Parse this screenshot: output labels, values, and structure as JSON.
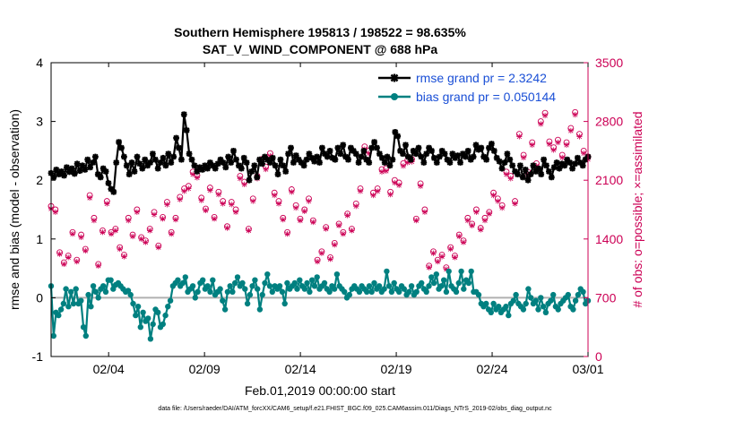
{
  "chart_data": {
    "type": "line",
    "title": "Southern Hemisphere 195813 / 198522 = 98.635%",
    "subtitle": "SAT_V_WIND_COMPONENT @ 688 hPa",
    "xlabel": "Feb.01,2019 00:00:00 start",
    "ylabel": "rmse and bias (model - observation)",
    "ylabel_right": "# of obs: o=possible; ×=assimilated",
    "footnote": "data file: /Users/raeder/DAI/ATM_forcXX/CAM6_setup/f.e21.FHIST_BGC.f09_025.CAM6assim.011/Diags_NTrS_2019-02/obs_diag_output.nc",
    "xlim": [
      1,
      29
    ],
    "ylim": [
      -1,
      4
    ],
    "ylim_right": [
      0,
      3500
    ],
    "x_ticks": [
      {
        "v": 4,
        "label": "02/04"
      },
      {
        "v": 9,
        "label": "02/09"
      },
      {
        "v": 14,
        "label": "02/14"
      },
      {
        "v": 19,
        "label": "02/19"
      },
      {
        "v": 24,
        "label": "02/24"
      },
      {
        "v": 29,
        "label": "03/01"
      }
    ],
    "y_ticks": [
      "-1",
      "0",
      "1",
      "2",
      "3",
      "4"
    ],
    "y_ticks_right": [
      "0",
      "700",
      "1400",
      "2100",
      "2800",
      "3500"
    ],
    "zero_line": 0,
    "colors": {
      "rmse": "#000000",
      "bias": "#008080",
      "obs": "#cc0055",
      "legend_text": "#1a4fd6",
      "zero": "#b0b0b0"
    },
    "series": [
      {
        "name": "rmse grand pr = 2.3242",
        "color": "#000000",
        "values": [
          2.12,
          2.05,
          2.18,
          2.1,
          2.15,
          2.08,
          2.22,
          2.14,
          2.2,
          2.11,
          2.28,
          2.16,
          2.25,
          2.18,
          2.35,
          2.22,
          2.3,
          2.4,
          2.1,
          2.05,
          2.2,
          2.15,
          1.95,
          1.85,
          1.8,
          2.3,
          2.65,
          2.55,
          2.4,
          2.25,
          2.1,
          2.3,
          2.15,
          2.4,
          2.28,
          2.2,
          2.35,
          2.25,
          2.3,
          2.45,
          2.35,
          2.2,
          2.3,
          2.38,
          2.25,
          2.45,
          2.3,
          2.4,
          2.72,
          2.55,
          2.35,
          3.12,
          2.85,
          2.45,
          2.35,
          2.25,
          2.15,
          2.22,
          2.18,
          2.25,
          2.2,
          2.3,
          2.25,
          2.2,
          2.28,
          2.35,
          2.3,
          2.22,
          2.4,
          2.3,
          2.5,
          2.35,
          2.25,
          2.2,
          2.38,
          2.3,
          2.0,
          2.15,
          2.25,
          2.05,
          2.35,
          2.28,
          2.4,
          2.35,
          2.3,
          2.38,
          2.25,
          2.1,
          2.35,
          2.25,
          2.15,
          2.45,
          2.55,
          2.3,
          2.42,
          2.35,
          2.3,
          2.25,
          2.35,
          2.45,
          2.38,
          2.32,
          2.4,
          2.3,
          2.55,
          2.45,
          2.4,
          2.5,
          2.38,
          2.35,
          2.55,
          2.45,
          2.6,
          2.4,
          2.35,
          2.55,
          2.5,
          2.45,
          2.3,
          2.4,
          2.5,
          2.35,
          2.3,
          2.55,
          2.65,
          2.55,
          2.45,
          2.38,
          2.3,
          2.4,
          2.25,
          2.35,
          2.82,
          2.75,
          2.5,
          2.45,
          2.6,
          2.4,
          2.35,
          2.5,
          2.45,
          2.55,
          2.4,
          2.3,
          2.45,
          2.55,
          2.5,
          2.38,
          2.3,
          2.4,
          2.5,
          2.45,
          2.35,
          2.3,
          2.45,
          2.38,
          2.42,
          2.3,
          2.45,
          2.4,
          2.5,
          2.35,
          2.4,
          2.6,
          2.52,
          2.55,
          2.4,
          2.35,
          2.55,
          2.62,
          2.5,
          2.38,
          2.32,
          2.2,
          2.3,
          2.45,
          2.35,
          2.25,
          2.15,
          2.1,
          2.25,
          2.05,
          2.18,
          2.0,
          2.1,
          2.25,
          2.15,
          2.2,
          2.1,
          2.35,
          2.25,
          2.15,
          2.05,
          2.22,
          2.3,
          2.2,
          2.28,
          2.25,
          2.35,
          2.3,
          2.2,
          2.28,
          2.38,
          2.3,
          2.25,
          2.35,
          2.4
        ]
      },
      {
        "name": "bias grand pr = 0.050144",
        "color": "#008080",
        "values": [
          0.2,
          -0.65,
          -0.25,
          -0.3,
          -0.2,
          -0.1,
          0.15,
          -0.15,
          0.1,
          -0.1,
          0.15,
          -0.1,
          -0.05,
          -0.5,
          -0.65,
          0.05,
          -0.15,
          0.2,
          0.1,
          0.0,
          0.15,
          0.2,
          0.1,
          0.3,
          0.3,
          0.15,
          0.22,
          0.25,
          0.2,
          0.15,
          0.1,
          0.12,
          0.05,
          -0.1,
          -0.3,
          -0.15,
          -0.5,
          -0.25,
          -0.4,
          -0.35,
          -0.7,
          -0.45,
          -0.2,
          -0.25,
          -0.5,
          -0.45,
          -0.3,
          -0.15,
          -0.05,
          0.2,
          0.25,
          0.3,
          0.2,
          0.25,
          0.35,
          0.1,
          0.15,
          0.2,
          0.0,
          0.1,
          0.25,
          0.3,
          0.15,
          0.2,
          0.1,
          0.3,
          0.05,
          0.1,
          0.15,
          -0.05,
          -0.2,
          0.1,
          0.2,
          0.1,
          0.25,
          0.35,
          0.2,
          0.25,
          0.15,
          -0.1,
          0.05,
          0.2,
          0.3,
          0.15,
          -0.2,
          0.05,
          0.25,
          0.4,
          0.2,
          0.1,
          0.2,
          0.15,
          0.2,
          0.1,
          -0.1,
          0.25,
          0.15,
          0.2,
          0.25,
          0.15,
          0.3,
          0.2,
          0.15,
          0.25,
          0.1,
          0.3,
          0.2,
          0.35,
          0.15,
          0.2,
          0.25,
          0.15,
          0.1,
          0.2,
          0.15,
          0.4,
          0.2,
          0.15,
          0.1,
          0.0,
          0.05,
          0.15,
          0.2,
          0.15,
          0.1,
          0.2,
          0.15,
          0.1,
          0.2,
          0.1,
          0.25,
          0.15,
          0.2,
          0.1,
          0.15,
          0.45,
          0.2,
          0.1,
          0.25,
          0.15,
          0.1,
          0.2,
          0.15,
          0.05,
          0.1,
          0.2,
          0.05,
          0.1,
          0.2,
          0.25,
          0.15,
          0.1,
          0.2,
          0.35,
          0.25,
          0.4,
          0.15,
          0.2,
          0.3,
          0.1,
          0.45,
          0.2,
          0.15,
          0.1,
          0.25,
          0.45,
          0.15,
          0.3,
          0.25,
          0.45,
          0.1,
          0.1,
          0.05,
          -0.1,
          -0.15,
          -0.1,
          -0.2,
          -0.25,
          -0.1,
          -0.2,
          -0.15,
          -0.25,
          -0.2,
          -0.15,
          -0.3,
          -0.1,
          -0.05,
          0.05,
          -0.1,
          -0.15,
          -0.2,
          -0.1,
          0.15,
          0.0,
          -0.1,
          -0.05,
          -0.2,
          0.0,
          -0.15,
          -0.25,
          -0.1,
          -0.05,
          0.05,
          -0.15,
          -0.2,
          -0.1,
          -0.05,
          0.0,
          0.05,
          -0.15,
          -0.2,
          -0.05,
          0.05,
          0.15,
          0.1,
          -0.1,
          -0.05
        ]
      }
    ],
    "obs_possible": [
      1790,
      1750,
      1240,
      1120,
      1200,
      1480,
      1150,
      1450,
      1280,
      1920,
      1650,
      1100,
      1500,
      1850,
      1480,
      1520,
      1300,
      1210,
      1650,
      1450,
      1750,
      1420,
      1380,
      1520,
      1720,
      1320,
      1660,
      1840,
      1480,
      1650,
      1900,
      2000,
      2030,
      2200,
      2160,
      1890,
      1760,
      2010,
      1660,
      1960,
      1850,
      1550,
      1840,
      1750,
      2150,
      2080,
      1520,
      1880,
      2150,
      2350,
      2260,
      2420,
      1950,
      1850,
      1650,
      1480,
      1990,
      1800,
      1640,
      1750,
      1880,
      1620,
      1150,
      1250,
      1540,
      1180,
      1350,
      1580,
      1480,
      1700,
      1520,
      1820,
      2000,
      2500,
      2450,
      1950,
      2000,
      2230,
      2240,
      1960,
      2100,
      2070,
      2300,
      2340,
      2350,
      1640,
      2060,
      1750,
      1080,
      1250,
      1150,
      1210,
      1060,
      1300,
      1200,
      1450,
      1380,
      1650,
      1580,
      1750,
      1530,
      1650,
      1720,
      1950,
      1880,
      1800,
      2200,
      2150,
      1850,
      2650,
      2400,
      2200,
      2550,
      2300,
      2800,
      2900,
      2560,
      2490,
      2580,
      2400,
      2550,
      2720,
      2910,
      2650,
      2450,
      2380
    ],
    "obs_assimilated": [
      1760,
      1720,
      1220,
      1100,
      1180,
      1460,
      1130,
      1420,
      1260,
      1890,
      1620,
      1080,
      1480,
      1820,
      1460,
      1500,
      1280,
      1190,
      1620,
      1430,
      1720,
      1400,
      1360,
      1500,
      1690,
      1300,
      1640,
      1810,
      1460,
      1630,
      1870,
      1970,
      2000,
      2170,
      2130,
      1860,
      1740,
      1980,
      1640,
      1930,
      1820,
      1530,
      1810,
      1720,
      2120,
      2050,
      1500,
      1850,
      2120,
      2320,
      2230,
      2390,
      1920,
      1820,
      1630,
      1460,
      1960,
      1770,
      1620,
      1730,
      1850,
      1600,
      1130,
      1230,
      1520,
      1160,
      1330,
      1560,
      1460,
      1680,
      1500,
      1790,
      1970,
      2470,
      2420,
      1920,
      1970,
      2200,
      2210,
      1930,
      2070,
      2040,
      2270,
      2310,
      2320,
      1620,
      2030,
      1720,
      1060,
      1230,
      1130,
      1190,
      1040,
      1280,
      1180,
      1430,
      1360,
      1620,
      1560,
      1720,
      1510,
      1620,
      1700,
      1920,
      1850,
      1770,
      2170,
      2120,
      1820,
      2620,
      2370,
      2170,
      2520,
      2270,
      2770,
      2870,
      2530,
      2460,
      2550,
      2370,
      2520,
      2690,
      2880,
      2620,
      2420,
      2350
    ],
    "legend_position": "top-right"
  }
}
